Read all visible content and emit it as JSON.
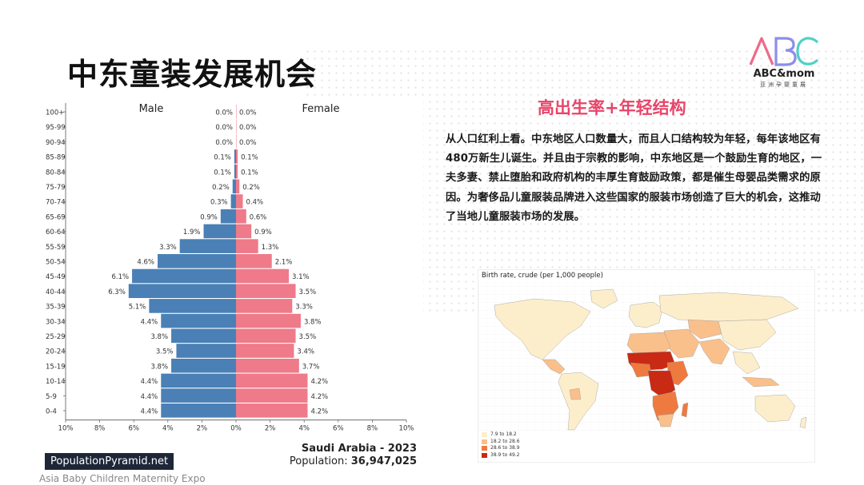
{
  "slide": {
    "title": "中东童装发展机会",
    "footer": "Asia Baby Children Maternity Expo"
  },
  "logo": {
    "letters": "ABC",
    "name": "ABC&mom",
    "subtitle": "亚洲孕婴童展"
  },
  "colors": {
    "male": "#4a80b5",
    "female": "#ee7a8a",
    "accent": "#e8456a",
    "map_scale": [
      "#fdeecb",
      "#f9c08c",
      "#ee7a40",
      "#c82a14"
    ]
  },
  "chart_data": {
    "type": "bar",
    "title": "Saudi Arabia - 2023",
    "population_label": "Population:",
    "population_value": "36,947,025",
    "brand": "PopulationPyramid.net",
    "male_label": "Male",
    "female_label": "Female",
    "categories": [
      "100+",
      "95-99",
      "90-94",
      "85-89",
      "80-84",
      "75-79",
      "70-74",
      "65-69",
      "60-64",
      "55-59",
      "50-54",
      "45-49",
      "40-44",
      "35-39",
      "30-34",
      "25-29",
      "20-24",
      "15-19",
      "10-14",
      "5-9",
      "0-4"
    ],
    "series": [
      {
        "name": "Male",
        "values": [
          0.0,
          0.0,
          0.0,
          0.1,
          0.1,
          0.2,
          0.3,
          0.9,
          1.9,
          3.3,
          4.6,
          6.1,
          6.3,
          5.1,
          4.4,
          3.8,
          3.5,
          3.8,
          4.4,
          4.4,
          4.4
        ]
      },
      {
        "name": "Female",
        "values": [
          0.0,
          0.0,
          0.0,
          0.1,
          0.1,
          0.2,
          0.4,
          0.6,
          0.9,
          1.3,
          2.1,
          3.1,
          3.5,
          3.3,
          3.8,
          3.5,
          3.4,
          3.7,
          4.2,
          4.2,
          4.2
        ]
      }
    ],
    "x_ticks": [
      "10%",
      "8%",
      "6%",
      "4%",
      "2%",
      "0%",
      "2%",
      "4%",
      "6%",
      "8%",
      "10%"
    ],
    "xlim": [
      -10,
      10
    ]
  },
  "content": {
    "section_title": "高出生率+年轻结构",
    "paragraph": "从人口红利上看。中东地区人口数量大，而且人口结构较为年轻，每年该地区有480万新生儿诞生。并且由于宗教的影响，中东地区是一个鼓励生育的地区，一夫多妻、禁止堕胎和政府机构的丰厚生育鼓励政策，都是催生母婴品类需求的原因。为奢侈品儿童服装品牌进入这些国家的服装市场创造了巨大的机会，这推动了当地儿童服装市场的发展。"
  },
  "map": {
    "title": "Birth rate, crude (per 1,000 people)",
    "legend": [
      "7.9 to 18.2",
      "18.2 to 28.6",
      "28.6 to 38.9",
      "38.9 to 49.2"
    ]
  }
}
